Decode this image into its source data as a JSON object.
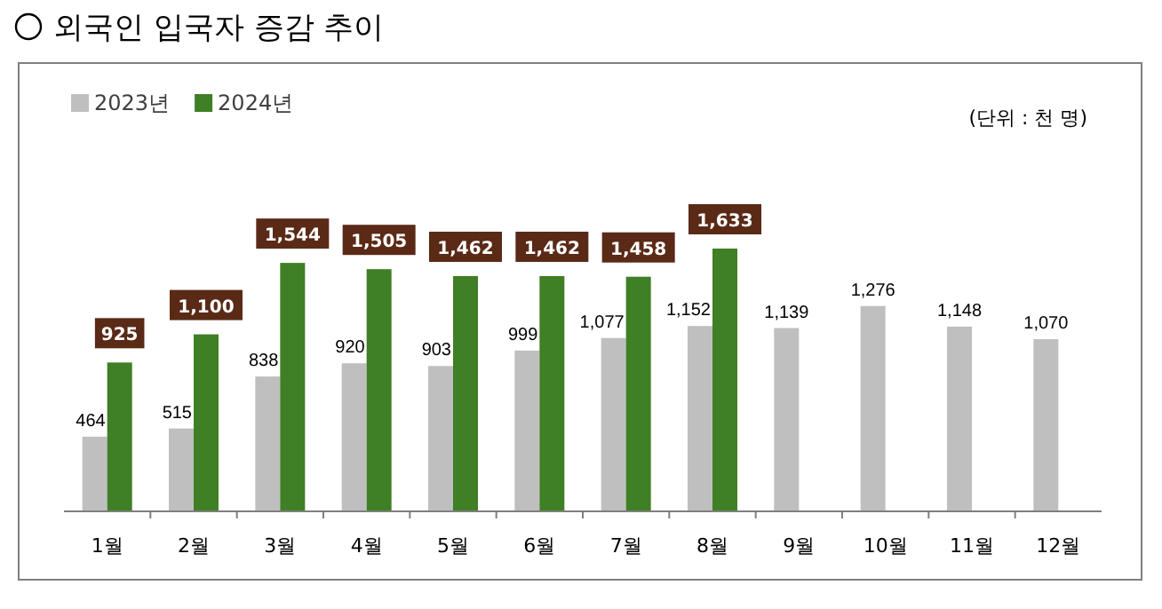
{
  "chart_data": {
    "type": "bar",
    "title": "외국인 입국자 증감 추이",
    "categories": [
      "1월",
      "2월",
      "3월",
      "4월",
      "5월",
      "6월",
      "7월",
      "8월",
      "9월",
      "10월",
      "11월",
      "12월"
    ],
    "series": [
      {
        "name": "2023년",
        "color": "#bfbfbf",
        "values": [
          464,
          515,
          838,
          920,
          903,
          999,
          1077,
          1152,
          1139,
          1276,
          1148,
          1070
        ],
        "value_labels": [
          "464",
          "515",
          "838",
          "920",
          "903",
          "999",
          "1,077",
          "1,152",
          "1,139",
          "1,276",
          "1,148",
          "1,070"
        ]
      },
      {
        "name": "2024년",
        "color": "#3f7f25",
        "values": [
          925,
          1100,
          1544,
          1505,
          1462,
          1462,
          1458,
          1633,
          null,
          null,
          null,
          null
        ],
        "value_labels": [
          "925",
          "1,100",
          "1,544",
          "1,505",
          "1,462",
          "1,462",
          "1,458",
          "1,633",
          null,
          null,
          null,
          null
        ]
      }
    ],
    "legend": "top left",
    "annotations": [
      "(단위 : 천 명)"
    ]
  }
}
